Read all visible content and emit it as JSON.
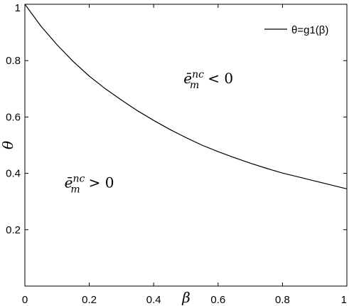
{
  "chart_data": {
    "type": "line",
    "title": "",
    "xlabel": "β",
    "ylabel": "θ",
    "xlim": [
      0,
      1
    ],
    "ylim": [
      0,
      1
    ],
    "xticks": [
      0,
      0.2,
      0.4,
      0.6,
      0.8,
      1
    ],
    "xtick_labels": [
      "0",
      "0.2",
      "0.4",
      "0.6",
      "0.8",
      "1"
    ],
    "yticks": [
      0.2,
      0.4,
      0.6,
      0.8,
      1
    ],
    "ytick_labels": [
      "0.2",
      "0.4",
      "0.6",
      "0.8",
      "1"
    ],
    "grid": false,
    "legend_position": "top-right",
    "series": [
      {
        "name": "θ=g1(β)",
        "color": "#000000",
        "x": [
          0,
          0.05,
          0.1,
          0.15,
          0.2,
          0.25,
          0.3,
          0.35,
          0.4,
          0.45,
          0.5,
          0.55,
          0.6,
          0.65,
          0.7,
          0.75,
          0.8,
          0.85,
          0.9,
          0.95,
          1
        ],
        "y": [
          1.0,
          0.922,
          0.856,
          0.797,
          0.745,
          0.7,
          0.66,
          0.622,
          0.588,
          0.556,
          0.527,
          0.5,
          0.477,
          0.456,
          0.436,
          0.418,
          0.401,
          0.387,
          0.373,
          0.359,
          0.345
        ]
      }
    ],
    "annotations": [
      {
        "base": "ē",
        "sub": "m",
        "sup": "nc",
        "relation": "< 0",
        "x": 0.57,
        "y": 0.72
      },
      {
        "base": "ē",
        "sub": "m",
        "sup": "nc",
        "relation": "> 0",
        "x": 0.2,
        "y": 0.35
      }
    ]
  }
}
